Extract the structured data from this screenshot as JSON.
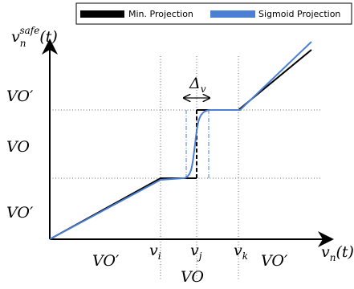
{
  "legend": {
    "entries": [
      {
        "label": "Min. Projection",
        "color": "#000000"
      },
      {
        "label": "Sigmoid Projection",
        "color": "#4a7fd4"
      }
    ]
  },
  "y_axis_label": {
    "symbol": "v",
    "sub": "n",
    "sup": "safe",
    "arg": "(t)"
  },
  "x_axis_label": {
    "symbol": "v",
    "sub": "n",
    "arg": "(t)"
  },
  "y_regions": [
    "VO′",
    "VO",
    "VO′"
  ],
  "x_regions": [
    "VO′",
    "VO",
    "VO′"
  ],
  "x_ticks": [
    {
      "symbol": "v",
      "sub": "i"
    },
    {
      "symbol": "v",
      "sub": "j"
    },
    {
      "symbol": "v",
      "sub": "k"
    }
  ],
  "delta": {
    "symbol": "Δ",
    "sub": "v"
  }
}
